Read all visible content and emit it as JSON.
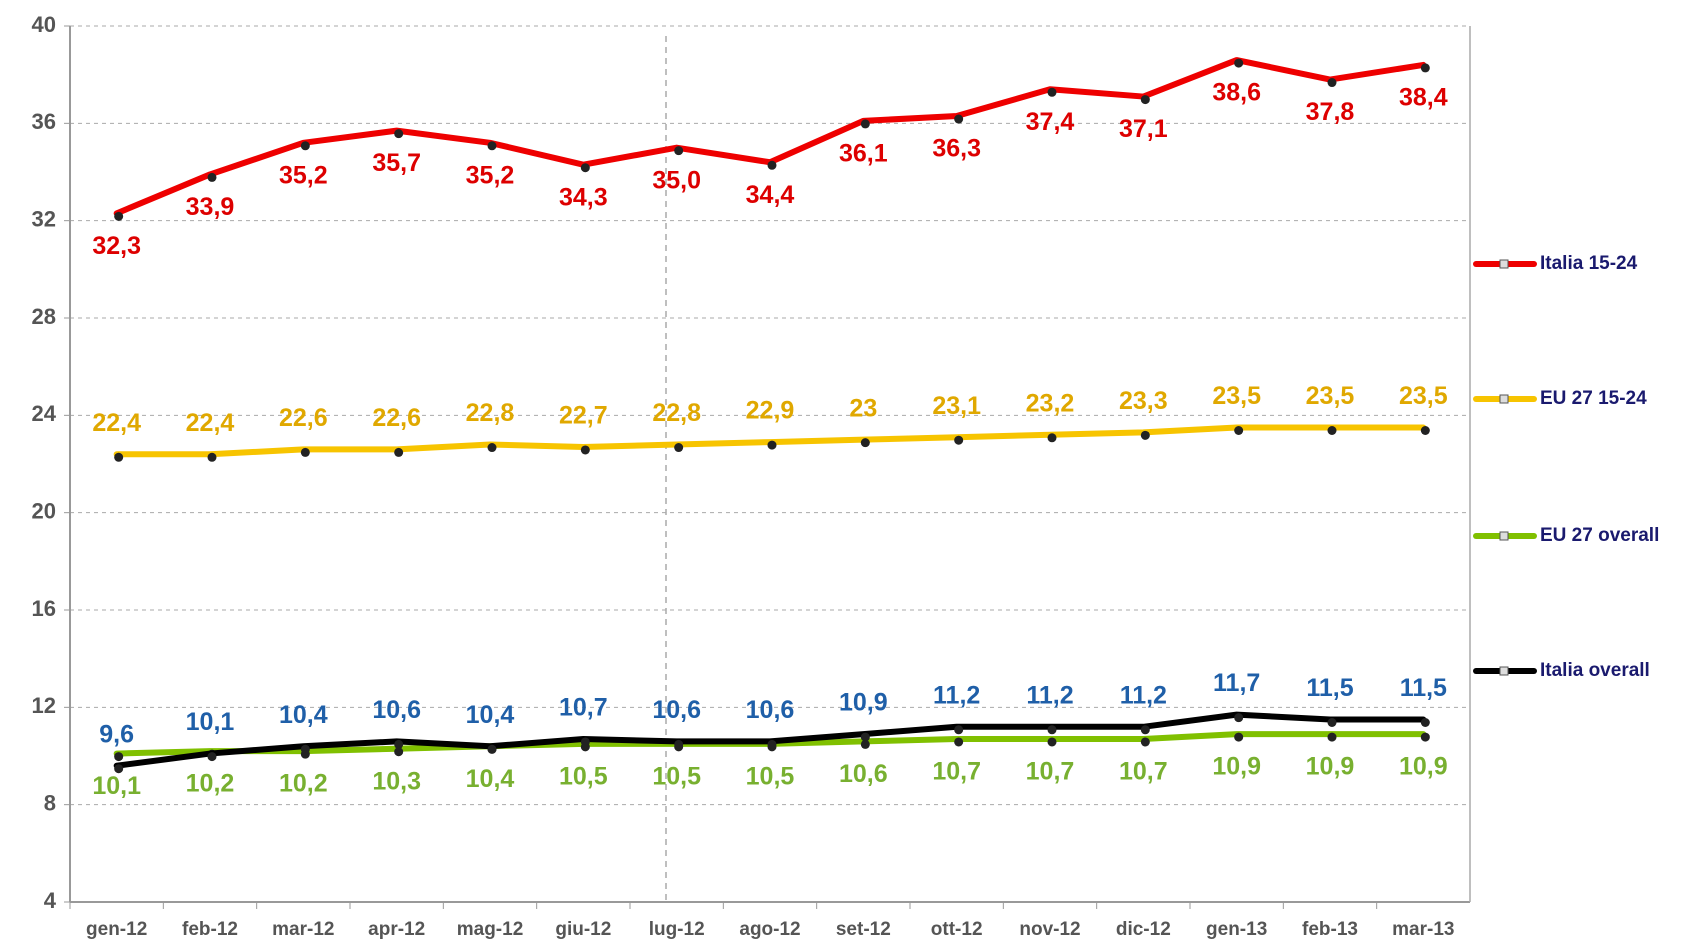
{
  "chart_data": {
    "type": "line",
    "categories": [
      "gen-12",
      "feb-12",
      "mar-12",
      "apr-12",
      "mag-12",
      "giu-12",
      "lug-12",
      "ago-12",
      "set-12",
      "ott-12",
      "nov-12",
      "dic-12",
      "gen-13",
      "feb-13",
      "mar-13"
    ],
    "ylim": [
      4,
      40
    ],
    "yticks": [
      4,
      8,
      12,
      16,
      20,
      24,
      28,
      32,
      36,
      40
    ],
    "grid": true,
    "legend": "right",
    "series": [
      {
        "name": "Italia 15-24",
        "color": "#ee0000",
        "label_color": "#dd0000",
        "label_position": "below",
        "values": [
          32.3,
          33.9,
          35.2,
          35.7,
          35.2,
          34.3,
          35.0,
          34.4,
          36.1,
          36.3,
          37.4,
          37.1,
          38.6,
          37.8,
          38.4
        ],
        "value_labels": [
          "32,3",
          "33,9",
          "35,2",
          "35,7",
          "35,2",
          "34,3",
          "35,0",
          "34,4",
          "36,1",
          "36,3",
          "37,4",
          "37,1",
          "38,6",
          "37,8",
          "38,4"
        ]
      },
      {
        "name": "EU 27 15-24",
        "color": "#f7c400",
        "label_color": "#e0a800",
        "label_position": "above",
        "values": [
          22.4,
          22.4,
          22.6,
          22.6,
          22.8,
          22.7,
          22.8,
          22.9,
          23,
          23.1,
          23.2,
          23.3,
          23.5,
          23.5,
          23.5
        ],
        "value_labels": [
          "22,4",
          "22,4",
          "22,6",
          "22,6",
          "22,8",
          "22,7",
          "22,8",
          "22,9",
          "23",
          "23,1",
          "23,2",
          "23,3",
          "23,5",
          "23,5",
          "23,5"
        ]
      },
      {
        "name": "EU 27 overall",
        "color": "#80c000",
        "label_color": "#78b030",
        "label_position": "below",
        "values": [
          10.1,
          10.2,
          10.2,
          10.3,
          10.4,
          10.5,
          10.5,
          10.5,
          10.6,
          10.7,
          10.7,
          10.7,
          10.9,
          10.9,
          10.9
        ],
        "value_labels": [
          "10,1",
          "10,2",
          "10,2",
          "10,3",
          "10,4",
          "10,5",
          "10,5",
          "10,5",
          "10,6",
          "10,7",
          "10,7",
          "10,7",
          "10,9",
          "10,9",
          "10,9"
        ]
      },
      {
        "name": "Italia overall",
        "color": "#000000",
        "label_color": "#1f5fa8",
        "label_position": "above",
        "values": [
          9.6,
          10.1,
          10.4,
          10.6,
          10.4,
          10.7,
          10.6,
          10.6,
          10.9,
          11.2,
          11.2,
          11.2,
          11.7,
          11.5,
          11.5
        ],
        "value_labels": [
          "9,6",
          "10,1",
          "10,4",
          "10,6",
          "10,4",
          "10,7",
          "10,6",
          "10,6",
          "10,9",
          "11,2",
          "11,2",
          "11,2",
          "11,7",
          "11,5",
          "11,5"
        ]
      }
    ]
  }
}
